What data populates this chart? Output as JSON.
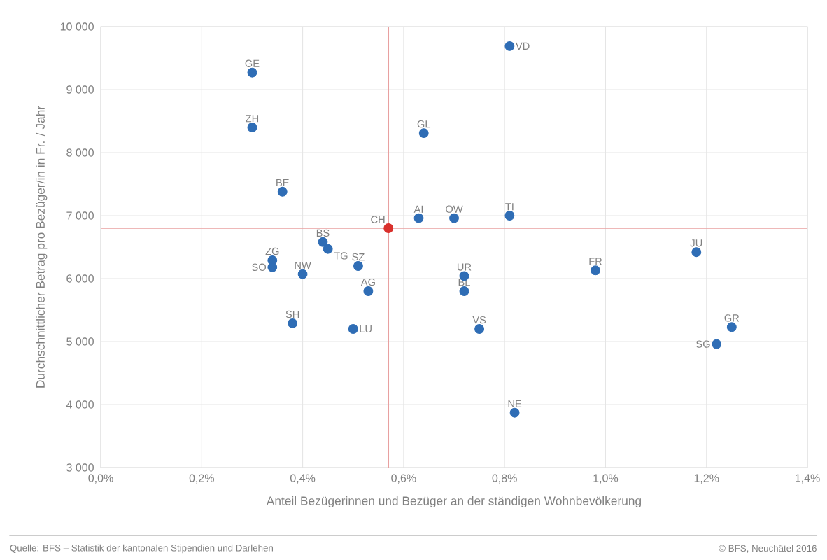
{
  "chart_data": {
    "type": "scatter",
    "xlabel": "Anteil Bezügerinnen und Bezüger an der ständigen Wohnbevölkerung",
    "ylabel": "Durchschnittlicher Betrag pro Bezüger/in in Fr. / Jahr",
    "xlim": [
      0,
      1.4
    ],
    "ylim": [
      3000,
      10000
    ],
    "xticks": [
      {
        "value": 0,
        "label": "0,0%"
      },
      {
        "value": 0.2,
        "label": "0,2%"
      },
      {
        "value": 0.4,
        "label": "0,4%"
      },
      {
        "value": 0.6,
        "label": "0,6%"
      },
      {
        "value": 0.8,
        "label": "0,8%"
      },
      {
        "value": 1.0,
        "label": "1,0%"
      },
      {
        "value": 1.2,
        "label": "1,2%"
      },
      {
        "value": 1.4,
        "label": "1,4%"
      }
    ],
    "yticks": [
      {
        "value": 3000,
        "label": "3 000"
      },
      {
        "value": 4000,
        "label": "4 000"
      },
      {
        "value": 5000,
        "label": "5 000"
      },
      {
        "value": 6000,
        "label": "6 000"
      },
      {
        "value": 7000,
        "label": "7 000"
      },
      {
        "value": 8000,
        "label": "8 000"
      },
      {
        "value": 9000,
        "label": "9 000"
      },
      {
        "value": 10000,
        "label": "10 000"
      }
    ],
    "grid": true,
    "marker": "circle",
    "series": [
      {
        "color": "#2f6db5",
        "x": [
          0.3,
          0.3,
          0.36,
          0.81,
          0.64,
          0.63,
          0.7,
          0.81,
          1.18,
          0.98,
          0.72,
          0.72,
          0.75,
          0.82,
          1.25,
          1.22,
          0.34,
          0.34,
          0.4,
          0.44,
          0.45,
          0.51,
          0.53,
          0.38,
          0.5
        ],
        "values": [
          9270,
          8400,
          7380,
          9690,
          8310,
          6960,
          6960,
          7000,
          6420,
          6130,
          6040,
          5800,
          5200,
          3870,
          5230,
          4960,
          6290,
          6180,
          6070,
          6580,
          6470,
          6200,
          5800,
          5290,
          5200
        ]
      },
      {
        "color": "#d9302c",
        "x": [
          0.57
        ],
        "values": [
          6800
        ]
      }
    ],
    "ref_lines": [
      {
        "axis": "x",
        "value": 0.57,
        "color": "#e8a0a0"
      },
      {
        "axis": "y",
        "value": 6800,
        "color": "#e8a0a0"
      }
    ],
    "annotations": [
      {
        "text": "GE",
        "x": 0.3,
        "y": 9270
      },
      {
        "text": "ZH",
        "x": 0.3,
        "y": 8400
      },
      {
        "text": "BE",
        "x": 0.36,
        "y": 7380
      },
      {
        "text": "VD",
        "x": 0.81,
        "y": 9690
      },
      {
        "text": "GL",
        "x": 0.64,
        "y": 8310
      },
      {
        "text": "AI",
        "x": 0.63,
        "y": 6960
      },
      {
        "text": "OW",
        "x": 0.7,
        "y": 6960
      },
      {
        "text": "TI",
        "x": 0.81,
        "y": 7000
      },
      {
        "text": "JU",
        "x": 1.18,
        "y": 6420
      },
      {
        "text": "FR",
        "x": 0.98,
        "y": 6130
      },
      {
        "text": "UR",
        "x": 0.72,
        "y": 6040
      },
      {
        "text": "BL",
        "x": 0.72,
        "y": 5800
      },
      {
        "text": "VS",
        "x": 0.75,
        "y": 5200
      },
      {
        "text": "NE",
        "x": 0.82,
        "y": 3870
      },
      {
        "text": "GR",
        "x": 1.25,
        "y": 5230
      },
      {
        "text": "SG",
        "x": 1.22,
        "y": 4960
      },
      {
        "text": "ZG",
        "x": 0.34,
        "y": 6290
      },
      {
        "text": "SO",
        "x": 0.34,
        "y": 6180
      },
      {
        "text": "NW",
        "x": 0.4,
        "y": 6070
      },
      {
        "text": "BS",
        "x": 0.44,
        "y": 6580
      },
      {
        "text": "TG",
        "x": 0.45,
        "y": 6470
      },
      {
        "text": "SZ",
        "x": 0.51,
        "y": 6200
      },
      {
        "text": "AG",
        "x": 0.53,
        "y": 5800
      },
      {
        "text": "SH",
        "x": 0.38,
        "y": 5290
      },
      {
        "text": "LU",
        "x": 0.5,
        "y": 5200
      },
      {
        "text": "CH",
        "x": 0.57,
        "y": 6800
      },
      "Quelle: BFS – Statistik der kantonalen Stipendien und Darlehen",
      "© BFS, Neuchâtel 2016"
    ]
  }
}
